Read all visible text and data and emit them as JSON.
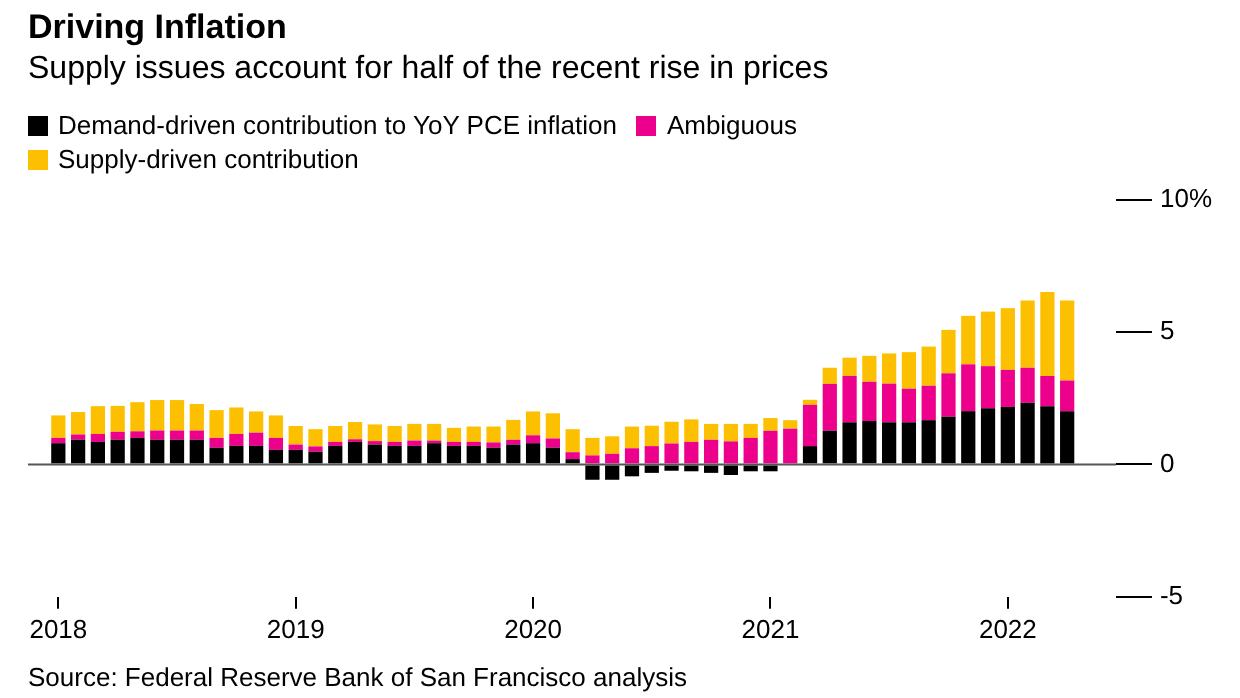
{
  "chart_data": {
    "type": "bar",
    "title": "Driving Inflation",
    "subtitle": "Supply issues account for half of the recent rise in prices",
    "stacked": true,
    "x": [
      "2018-01",
      "2018-02",
      "2018-03",
      "2018-04",
      "2018-05",
      "2018-06",
      "2018-07",
      "2018-08",
      "2018-09",
      "2018-10",
      "2018-11",
      "2018-12",
      "2019-01",
      "2019-02",
      "2019-03",
      "2019-04",
      "2019-05",
      "2019-06",
      "2019-07",
      "2019-08",
      "2019-09",
      "2019-10",
      "2019-11",
      "2019-12",
      "2020-01",
      "2020-02",
      "2020-03",
      "2020-04",
      "2020-05",
      "2020-06",
      "2020-07",
      "2020-08",
      "2020-09",
      "2020-10",
      "2020-11",
      "2020-12",
      "2021-01",
      "2021-02",
      "2021-03",
      "2021-04",
      "2021-05",
      "2021-06",
      "2021-07",
      "2021-08",
      "2021-09",
      "2021-10",
      "2021-11",
      "2021-12",
      "2022-01",
      "2022-02",
      "2022-03",
      "2022-04"
    ],
    "series": [
      {
        "name": "Demand-driven contribution to YoY PCE inflation",
        "color": "#000000",
        "values": [
          0.8,
          0.93,
          0.85,
          0.93,
          1.0,
          0.93,
          0.93,
          0.93,
          0.63,
          0.7,
          0.7,
          0.55,
          0.55,
          0.48,
          0.7,
          0.85,
          0.75,
          0.7,
          0.7,
          0.8,
          0.7,
          0.7,
          0.63,
          0.75,
          0.8,
          0.63,
          0.2,
          -0.58,
          -0.58,
          -0.45,
          -0.32,
          -0.24,
          -0.26,
          -0.32,
          -0.4,
          -0.26,
          -0.26,
          null,
          0.69,
          1.27,
          1.59,
          1.64,
          1.59,
          1.59,
          1.67,
          1.8,
          2.01,
          2.12,
          2.17,
          2.33,
          2.2,
          2.01
        ]
      },
      {
        "name": "Ambiguous",
        "color": "#ec008c",
        "values": [
          0.2,
          0.2,
          0.3,
          0.3,
          0.25,
          0.35,
          0.35,
          0.35,
          0.37,
          0.45,
          0.5,
          0.45,
          0.2,
          0.2,
          0.15,
          0.1,
          0.13,
          0.15,
          0.2,
          0.1,
          0.15,
          0.15,
          0.2,
          0.18,
          0.3,
          0.35,
          0.26,
          0.34,
          0.4,
          0.61,
          0.69,
          0.79,
          0.85,
          0.93,
          0.87,
          1.0,
          1.27,
          1.35,
          1.56,
          1.77,
          1.75,
          1.48,
          1.46,
          1.27,
          1.3,
          1.64,
          1.77,
          1.59,
          1.4,
          1.32,
          1.14,
          1.16
        ]
      },
      {
        "name": "Supply-driven contribution",
        "color": "#fcc000",
        "values": [
          0.85,
          0.85,
          1.05,
          0.98,
          1.1,
          1.15,
          1.15,
          1.0,
          1.05,
          1.0,
          0.8,
          0.85,
          0.7,
          0.65,
          0.6,
          0.65,
          0.63,
          0.6,
          0.63,
          0.63,
          0.53,
          0.58,
          0.6,
          0.75,
          0.9,
          0.95,
          0.87,
          0.66,
          0.66,
          0.82,
          0.77,
          0.82,
          0.85,
          0.6,
          0.66,
          0.53,
          0.48,
          0.32,
          0.19,
          0.61,
          0.69,
          0.98,
          1.14,
          1.38,
          1.48,
          1.64,
          1.83,
          2.06,
          2.33,
          2.54,
          3.17,
          3.02
        ]
      }
    ],
    "xlim": [
      "2017-11-15",
      "2022-06-15"
    ],
    "xticks": [
      {
        "value": "2018",
        "label": "2018"
      },
      {
        "value": "2019",
        "label": "2019"
      },
      {
        "value": "2020",
        "label": "2020"
      },
      {
        "value": "2021",
        "label": "2021"
      },
      {
        "value": "2022",
        "label": "2022"
      }
    ],
    "ylim": [
      -5,
      10
    ],
    "yticks": [
      {
        "value": 10,
        "label": "10%"
      },
      5,
      0,
      -5
    ],
    "ref_lines": [
      {
        "axis": "y",
        "value": 0
      }
    ],
    "grid": false,
    "legend": "top left",
    "annotations": [
      "Source: Federal Reserve Bank of San Francisco analysis"
    ]
  }
}
